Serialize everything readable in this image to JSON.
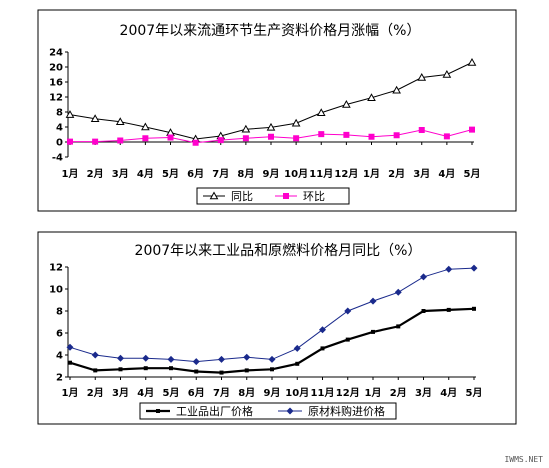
{
  "chart_data": [
    {
      "type": "line",
      "title": "2007年以来流通环节生产资料价格月涨幅（%）",
      "categories": [
        "1月",
        "2月",
        "3月",
        "4月",
        "5月",
        "6月",
        "7月",
        "8月",
        "9月",
        "10月",
        "11月",
        "12月",
        "1月",
        "2月",
        "3月",
        "4月",
        "5月"
      ],
      "ylim": [
        -4,
        24
      ],
      "yticks": [
        -4,
        0,
        4,
        8,
        12,
        16,
        20,
        24
      ],
      "grid": false,
      "legend": "bottom",
      "series": [
        {
          "name": "同比",
          "color": "#000000",
          "marker": "triangle-open",
          "values": [
            7.3,
            6.2,
            5.4,
            4.0,
            2.5,
            0.8,
            1.6,
            3.4,
            3.9,
            5.0,
            7.8,
            10.0,
            11.8,
            13.8,
            17.2,
            18.0,
            21.2
          ]
        },
        {
          "name": "环比",
          "color": "#ff00cc",
          "marker": "square",
          "values": [
            0.1,
            0.1,
            0.4,
            1.0,
            1.2,
            -0.2,
            0.5,
            1.0,
            1.4,
            1.0,
            2.1,
            1.9,
            1.4,
            1.8,
            3.2,
            1.5,
            3.3
          ]
        }
      ]
    },
    {
      "type": "line",
      "title": "2007年以来工业品和原燃料价格月同比（%）",
      "categories": [
        "1月",
        "2月",
        "3月",
        "4月",
        "5月",
        "6月",
        "7月",
        "8月",
        "9月",
        "10月",
        "11月",
        "12月",
        "1月",
        "2月",
        "3月",
        "4月",
        "5月"
      ],
      "ylim": [
        2,
        12
      ],
      "yticks": [
        2,
        4,
        6,
        8,
        10,
        12
      ],
      "grid": false,
      "legend": "bottom",
      "series": [
        {
          "name": "工业品出厂价格",
          "color": "#000000",
          "marker": "square-small",
          "values": [
            3.3,
            2.6,
            2.7,
            2.8,
            2.8,
            2.5,
            2.4,
            2.6,
            2.7,
            3.2,
            4.6,
            5.4,
            6.1,
            6.6,
            8.0,
            8.1,
            8.2
          ]
        },
        {
          "name": "原材料购进价格",
          "color": "#1a2a8c",
          "marker": "diamond",
          "values": [
            4.7,
            4.0,
            3.7,
            3.7,
            3.6,
            3.4,
            3.6,
            3.8,
            3.6,
            4.6,
            6.3,
            8.0,
            8.9,
            9.7,
            11.1,
            11.8,
            11.9
          ]
        }
      ]
    }
  ],
  "watermark": "IWMS.NET"
}
